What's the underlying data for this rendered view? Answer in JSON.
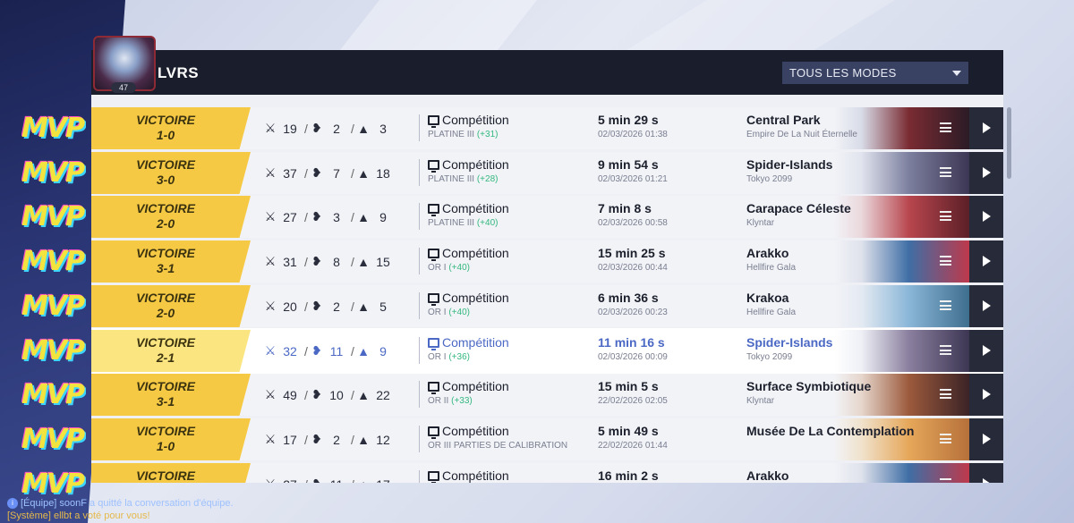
{
  "player": {
    "name": "LVRS",
    "level": "47"
  },
  "filter": {
    "selected": "TOUS LES MODES"
  },
  "mvp_label": "MVP",
  "matches": [
    {
      "result": "VICTOIRE",
      "score": "1-0",
      "kills": "19",
      "deaths": "2",
      "assists": "3",
      "mode": "Compétition",
      "rank": "PLATINE III",
      "gain": "(+31)",
      "duration": "5 min 29 s",
      "date": "02/03/2026 01:38",
      "map": "Central Park",
      "map_sub": "Empire De La Nuit Éternelle",
      "thumb_colors": [
        "#d8dce8",
        "#7a2b32",
        "#2a1b26"
      ]
    },
    {
      "result": "VICTOIRE",
      "score": "3-0",
      "kills": "37",
      "deaths": "7",
      "assists": "18",
      "mode": "Compétition",
      "rank": "PLATINE III",
      "gain": "(+28)",
      "duration": "9 min 54 s",
      "date": "02/03/2026 01:21",
      "map": "Spider-Islands",
      "map_sub": "Tokyo 2099",
      "thumb_colors": [
        "#e1e4ee",
        "#7c7f9e",
        "#3b3552"
      ]
    },
    {
      "result": "VICTOIRE",
      "score": "2-0",
      "kills": "27",
      "deaths": "3",
      "assists": "9",
      "mode": "Compétition",
      "rank": "PLATINE III",
      "gain": "(+40)",
      "duration": "7 min 8 s",
      "date": "02/03/2026 00:58",
      "map": "Carapace Céleste",
      "map_sub": "Klyntar",
      "thumb_colors": [
        "#ead8dc",
        "#b8464e",
        "#5a1e26"
      ]
    },
    {
      "result": "VICTOIRE",
      "score": "3-1",
      "kills": "31",
      "deaths": "8",
      "assists": "15",
      "mode": "Compétition",
      "rank": "OR I",
      "gain": "(+40)",
      "duration": "15 min 25 s",
      "date": "02/03/2026 00:44",
      "map": "Arakko",
      "map_sub": "Hellfire Gala",
      "thumb_colors": [
        "#dfe2ec",
        "#3f6ea5",
        "#c0384a"
      ]
    },
    {
      "result": "VICTOIRE",
      "score": "2-0",
      "kills": "20",
      "deaths": "2",
      "assists": "5",
      "mode": "Compétition",
      "rank": "OR I",
      "gain": "(+40)",
      "duration": "6 min 36 s",
      "date": "02/03/2026 00:23",
      "map": "Krakoa",
      "map_sub": "Hellfire Gala",
      "thumb_colors": [
        "#e4eaf2",
        "#8ab6d8",
        "#3d6d8c"
      ]
    },
    {
      "result": "VICTOIRE",
      "score": "2-1",
      "kills": "32",
      "deaths": "11",
      "assists": "9",
      "mode": "Compétition",
      "rank": "OR I",
      "gain": "(+36)",
      "duration": "11 min 16 s",
      "date": "02/03/2026 00:09",
      "map": "Spider-Islands",
      "map_sub": "Tokyo 2099",
      "thumb_colors": [
        "#eef0f6",
        "#8a7f9e",
        "#3b3552"
      ],
      "active": true
    },
    {
      "result": "VICTOIRE",
      "score": "3-1",
      "kills": "49",
      "deaths": "10",
      "assists": "22",
      "mode": "Compétition",
      "rank": "OR II",
      "gain": "(+33)",
      "duration": "15 min 5 s",
      "date": "22/02/2026 02:05",
      "map": "Surface Symbiotique",
      "map_sub": "Klyntar",
      "thumb_colors": [
        "#e6d6cc",
        "#9c5a3c",
        "#3a2226"
      ]
    },
    {
      "result": "VICTOIRE",
      "score": "1-0",
      "kills": "17",
      "deaths": "2",
      "assists": "12",
      "mode": "Compétition",
      "rank": "OR III PARTIES DE CALIBRATION",
      "gain": "",
      "duration": "5 min 49 s",
      "date": "22/02/2026 01:44",
      "map": "Musée De La Contemplation",
      "map_sub": "",
      "thumb_colors": [
        "#f0e2cc",
        "#e6a75a",
        "#b5703a"
      ]
    },
    {
      "result": "VICTOIRE",
      "score": "",
      "kills": "27",
      "deaths": "11",
      "assists": "17",
      "mode": "Compétition",
      "rank": "",
      "gain": "",
      "duration": "16 min 2 s",
      "date": "",
      "map": "Arakko",
      "map_sub": "",
      "thumb_colors": [
        "#dfe2ec",
        "#3f6ea5",
        "#c0384a"
      ]
    }
  ],
  "chat": {
    "line1": "[Équipe] soonF a quitté la conversation d'équipe.",
    "line2": "[Système] ellbt a voté pour vous!"
  }
}
